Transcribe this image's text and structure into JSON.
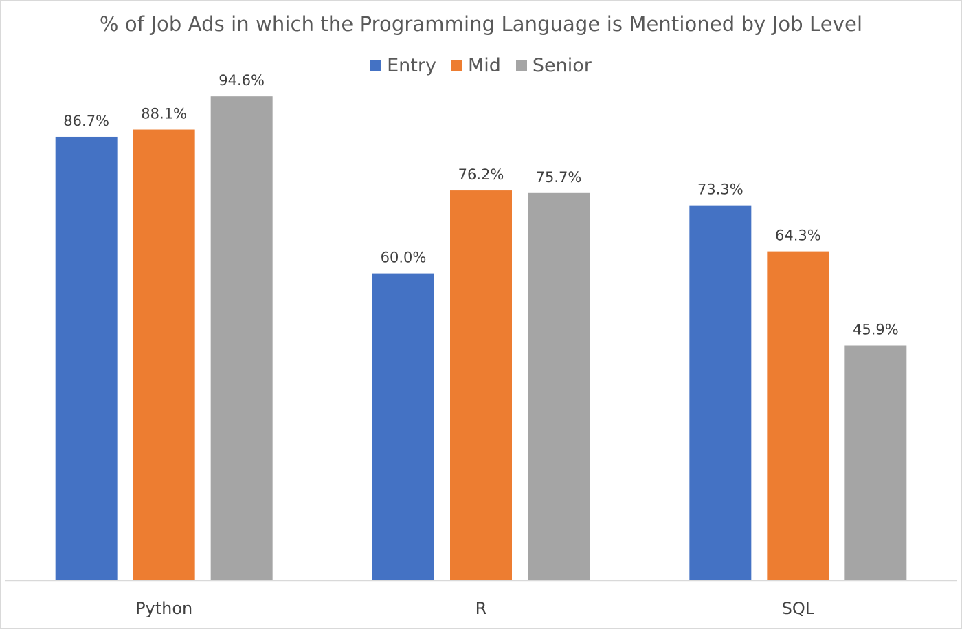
{
  "chart_data": {
    "type": "bar",
    "title": "% of Job Ads in which the Programming Language is Mentioned by Job Level",
    "categories": [
      "Python",
      "R",
      "SQL"
    ],
    "series": [
      {
        "name": "Entry",
        "color": "#4472c4",
        "values": [
          86.7,
          60.0,
          73.3
        ],
        "labels": [
          "86.7%",
          "60.0%",
          "73.3%"
        ]
      },
      {
        "name": "Mid",
        "color": "#ed7d31",
        "values": [
          88.1,
          76.2,
          64.3
        ],
        "labels": [
          "88.1%",
          "76.2%",
          "64.3%"
        ]
      },
      {
        "name": "Senior",
        "color": "#a5a5a5",
        "values": [
          94.6,
          75.7,
          45.9
        ],
        "labels": [
          "94.6%",
          "75.7%",
          "45.9%"
        ]
      }
    ],
    "ylim": [
      0,
      100
    ],
    "grid": false,
    "legend_position": "top"
  }
}
